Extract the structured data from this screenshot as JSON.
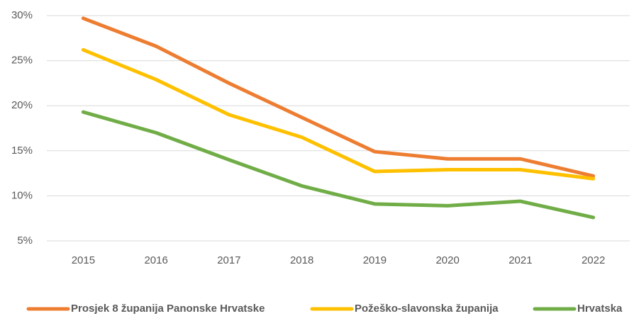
{
  "chart_data": {
    "type": "line",
    "categories": [
      "2015",
      "2016",
      "2017",
      "2018",
      "2019",
      "2020",
      "2021",
      "2022"
    ],
    "series": [
      {
        "name": "Prosjek 8 županija Panonske Hrvatske",
        "color": "#ed7d31",
        "values": [
          29.7,
          26.6,
          22.5,
          18.7,
          14.9,
          14.1,
          14.1,
          12.2
        ]
      },
      {
        "name": "Požeško-slavonska županija",
        "color": "#ffc000",
        "values": [
          26.2,
          22.9,
          19.0,
          16.5,
          12.7,
          12.9,
          12.9,
          11.9
        ]
      },
      {
        "name": "Hrvatska",
        "color": "#70ad47",
        "values": [
          19.3,
          17.0,
          14.0,
          11.1,
          9.1,
          8.9,
          9.4,
          7.6
        ]
      }
    ],
    "ylim": [
      5,
      30
    ],
    "yticks": [
      {
        "value": 5,
        "label": "5%"
      },
      {
        "value": 10,
        "label": "10%"
      },
      {
        "value": 15,
        "label": "15%"
      },
      {
        "value": 20,
        "label": "20%"
      },
      {
        "value": 25,
        "label": "25%"
      },
      {
        "value": 30,
        "label": "30%"
      }
    ],
    "grid": true,
    "legend": "bottom"
  }
}
